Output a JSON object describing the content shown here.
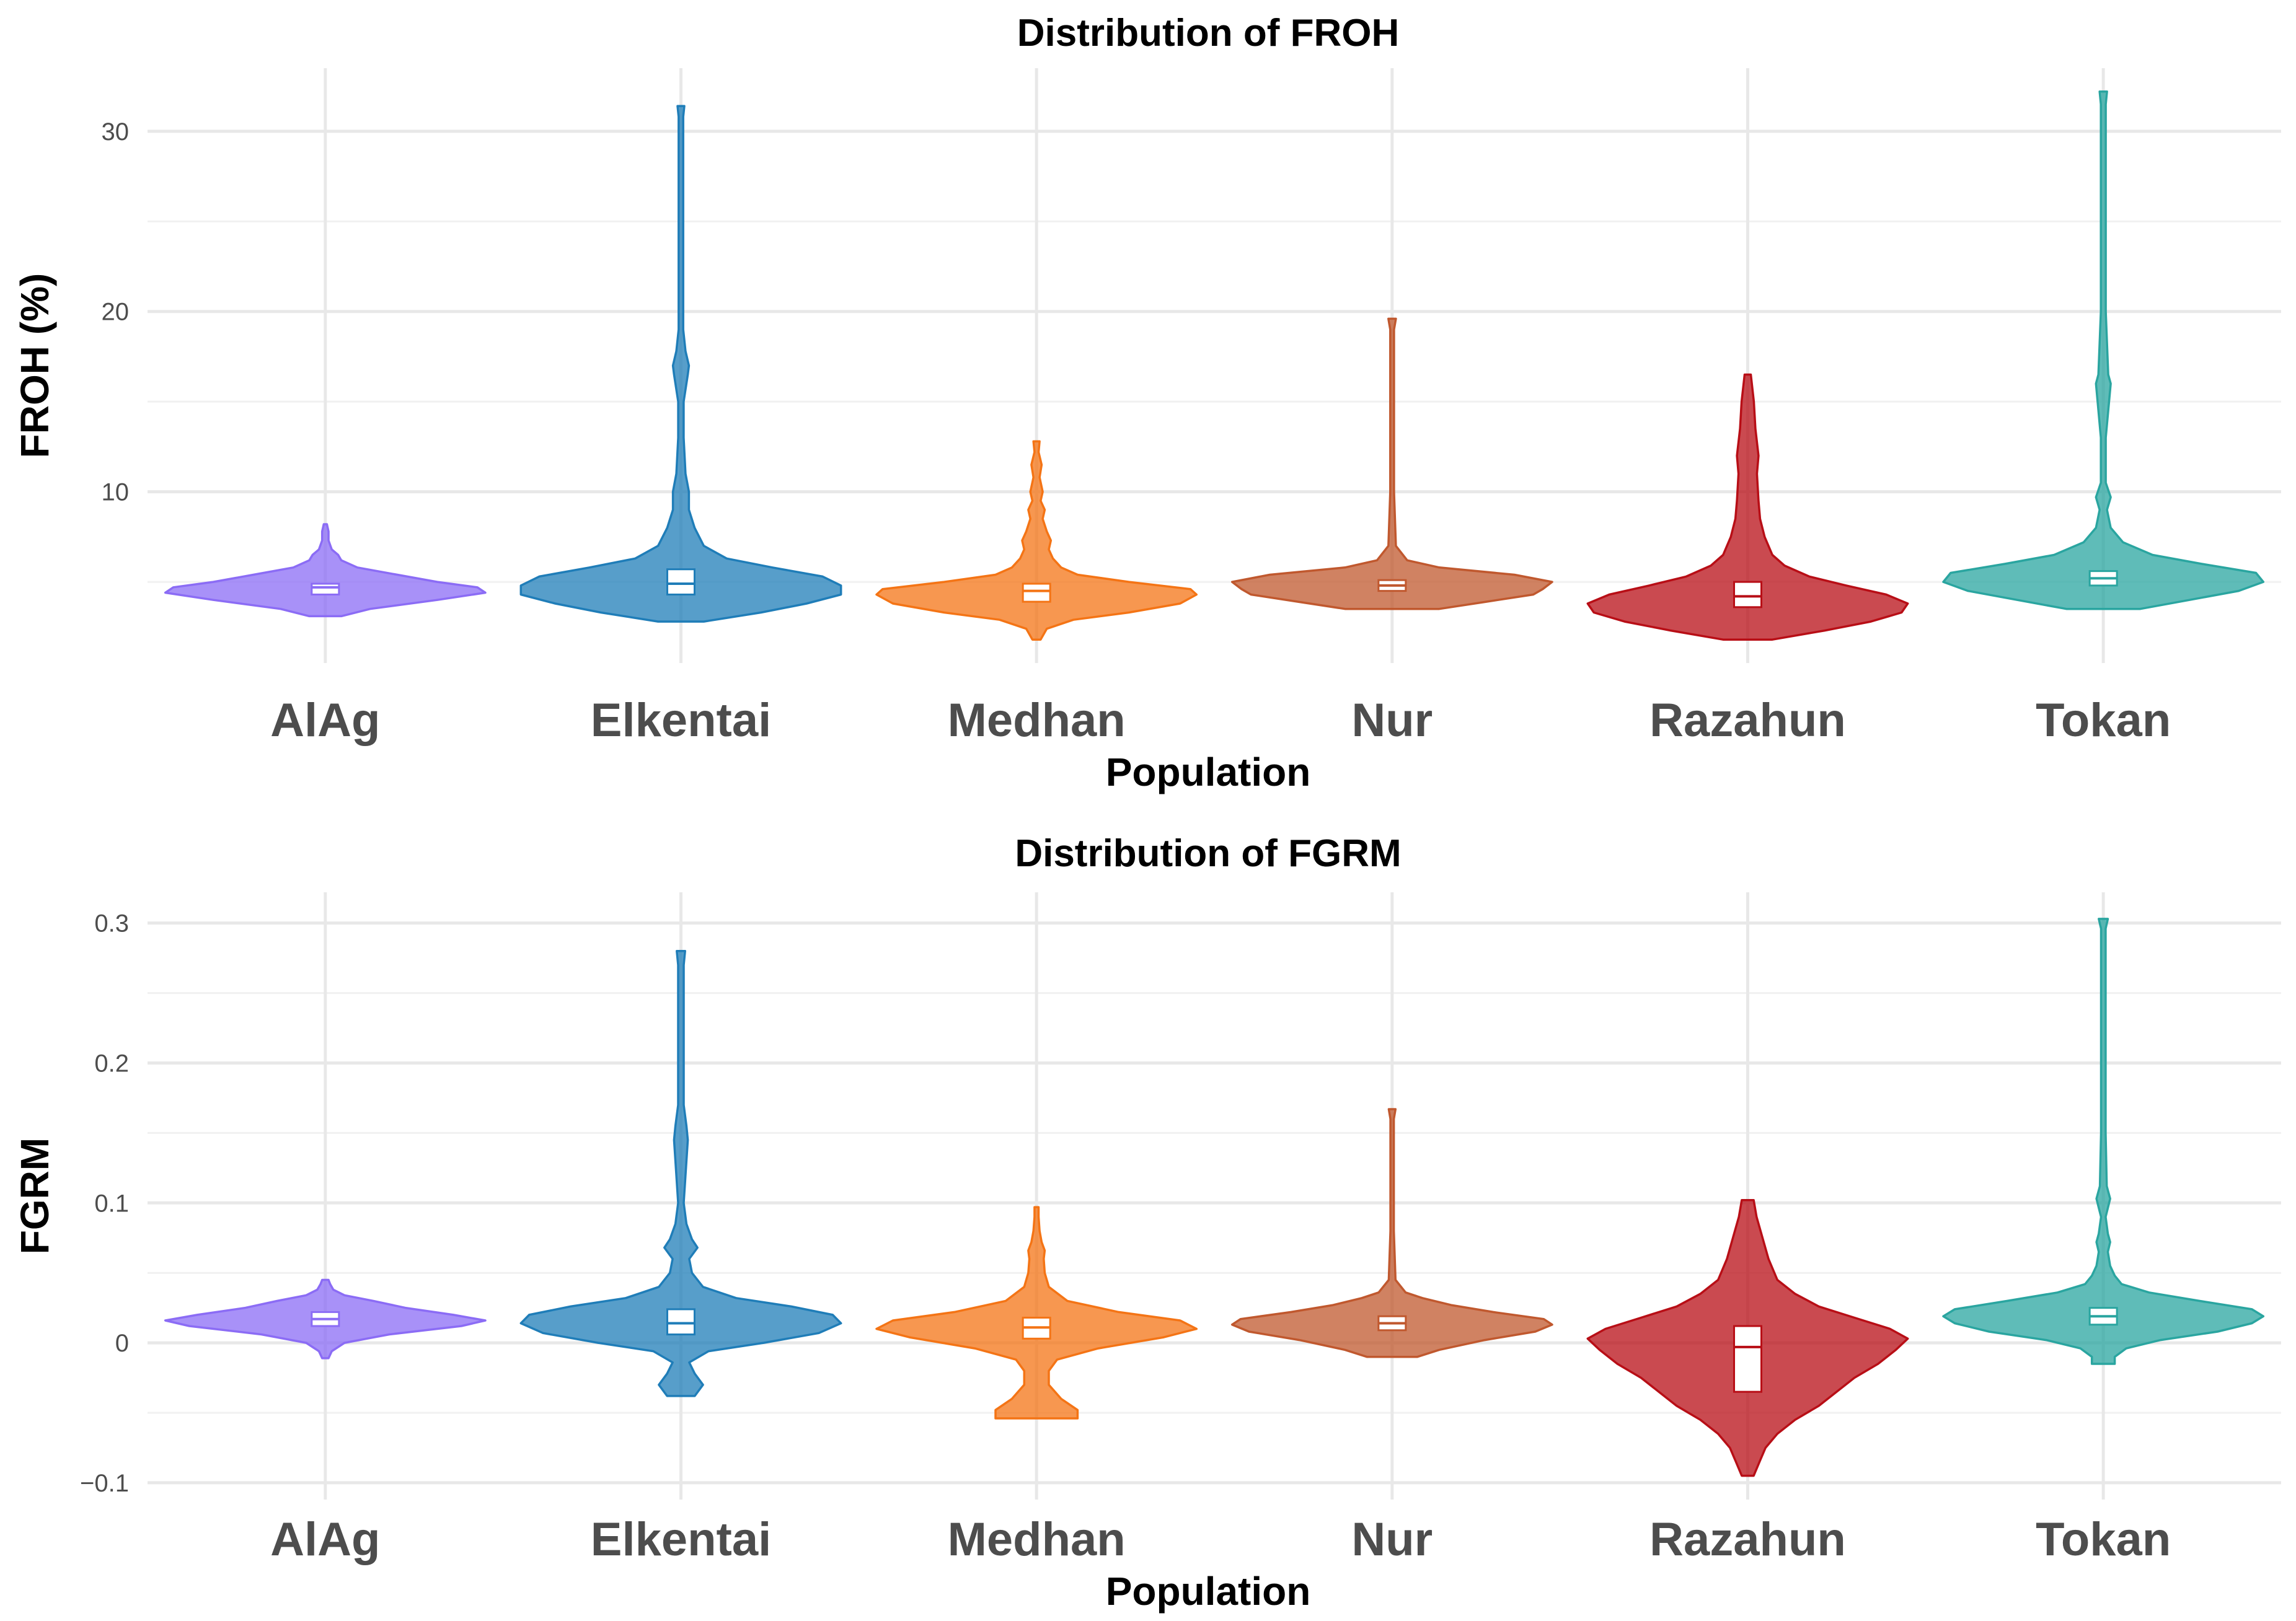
{
  "chart_data": [
    {
      "type": "violin",
      "title": "Distribution of FROH",
      "xlabel": "Population",
      "ylabel": "FROH (%)",
      "categories": [
        "AlAg",
        "Elkentai",
        "Medhan",
        "Nur",
        "Razahun",
        "Tokan"
      ],
      "yticks": [
        10,
        20,
        30
      ],
      "ytick_labels": [
        "10",
        "20",
        "30"
      ],
      "ylim": [
        0.5,
        33.5
      ],
      "series": [
        {
          "name": "AlAg",
          "color": "#8B6CF5",
          "min": 3.1,
          "max": 8.2,
          "q1": 4.3,
          "median": 4.7,
          "q3": 4.9,
          "density": [
            [
              3.1,
              0.1
            ],
            [
              3.5,
              0.28
            ],
            [
              4.0,
              0.7
            ],
            [
              4.4,
              1.0
            ],
            [
              4.7,
              0.95
            ],
            [
              5.0,
              0.7
            ],
            [
              5.4,
              0.45
            ],
            [
              5.8,
              0.2
            ],
            [
              6.2,
              0.1
            ],
            [
              6.5,
              0.08
            ],
            [
              6.8,
              0.04
            ],
            [
              7.3,
              0.02
            ],
            [
              7.8,
              0.02
            ],
            [
              8.2,
              0.01
            ]
          ]
        },
        {
          "name": "Elkentai",
          "color": "#1F7DB8",
          "min": 2.8,
          "max": 31.4,
          "q1": 4.3,
          "median": 4.9,
          "q3": 5.7,
          "density": [
            [
              2.8,
              0.1
            ],
            [
              3.3,
              0.35
            ],
            [
              3.8,
              0.55
            ],
            [
              4.3,
              0.7
            ],
            [
              4.8,
              0.7
            ],
            [
              5.3,
              0.62
            ],
            [
              5.8,
              0.4
            ],
            [
              6.3,
              0.2
            ],
            [
              7.0,
              0.1
            ],
            [
              8.0,
              0.06
            ],
            [
              9.0,
              0.035
            ],
            [
              10.0,
              0.035
            ],
            [
              11.0,
              0.02
            ],
            [
              13.0,
              0.012
            ],
            [
              15.0,
              0.012
            ],
            [
              16.5,
              0.03
            ],
            [
              17.0,
              0.035
            ],
            [
              17.8,
              0.02
            ],
            [
              19.0,
              0.01
            ],
            [
              25.0,
              0.01
            ],
            [
              30.8,
              0.01
            ],
            [
              31.4,
              0.015
            ]
          ]
        },
        {
          "name": "Medhan",
          "color": "#F47415",
          "min": 1.8,
          "max": 12.8,
          "q1": 3.9,
          "median": 4.5,
          "q3": 4.9,
          "density": [
            [
              1.8,
              0.02
            ],
            [
              2.4,
              0.05
            ],
            [
              2.9,
              0.18
            ],
            [
              3.3,
              0.45
            ],
            [
              3.8,
              0.7
            ],
            [
              4.3,
              0.78
            ],
            [
              4.6,
              0.75
            ],
            [
              5.0,
              0.45
            ],
            [
              5.4,
              0.2
            ],
            [
              5.8,
              0.12
            ],
            [
              6.3,
              0.08
            ],
            [
              6.8,
              0.06
            ],
            [
              7.3,
              0.07
            ],
            [
              7.8,
              0.05
            ],
            [
              8.5,
              0.03
            ],
            [
              9.0,
              0.04
            ],
            [
              9.5,
              0.02
            ],
            [
              10.0,
              0.03
            ],
            [
              10.8,
              0.015
            ],
            [
              11.5,
              0.025
            ],
            [
              12.2,
              0.01
            ],
            [
              12.8,
              0.015
            ]
          ]
        },
        {
          "name": "Nur",
          "color": "#C0582E",
          "min": 3.5,
          "max": 19.6,
          "q1": 4.5,
          "median": 4.8,
          "q3": 5.1,
          "density": [
            [
              3.5,
              0.25
            ],
            [
              3.9,
              0.5
            ],
            [
              4.3,
              0.75
            ],
            [
              4.6,
              0.8
            ],
            [
              5.0,
              0.85
            ],
            [
              5.4,
              0.65
            ],
            [
              5.8,
              0.25
            ],
            [
              6.2,
              0.08
            ],
            [
              7.0,
              0.02
            ],
            [
              10.0,
              0.01
            ],
            [
              15.0,
              0.01
            ],
            [
              19.0,
              0.01
            ],
            [
              19.6,
              0.02
            ]
          ]
        },
        {
          "name": "Razahun",
          "color": "#B80E16",
          "min": 1.8,
          "max": 16.5,
          "q1": 3.6,
          "median": 4.2,
          "q3": 5.0,
          "density": [
            [
              1.8,
              0.08
            ],
            [
              2.3,
              0.25
            ],
            [
              2.8,
              0.4
            ],
            [
              3.3,
              0.5
            ],
            [
              3.8,
              0.52
            ],
            [
              4.3,
              0.45
            ],
            [
              4.8,
              0.32
            ],
            [
              5.3,
              0.2
            ],
            [
              5.9,
              0.12
            ],
            [
              6.5,
              0.08
            ],
            [
              7.5,
              0.055
            ],
            [
              8.5,
              0.04
            ],
            [
              9.5,
              0.035
            ],
            [
              11.0,
              0.03
            ],
            [
              12.0,
              0.035
            ],
            [
              13.5,
              0.025
            ],
            [
              15.0,
              0.02
            ],
            [
              16.5,
              0.01
            ]
          ]
        },
        {
          "name": "Tokan",
          "color": "#2AA5A0",
          "min": 3.5,
          "max": 32.2,
          "q1": 4.8,
          "median": 5.2,
          "q3": 5.6,
          "density": [
            [
              3.5,
              0.15
            ],
            [
              4.0,
              0.35
            ],
            [
              4.5,
              0.55
            ],
            [
              5.0,
              0.65
            ],
            [
              5.5,
              0.62
            ],
            [
              6.0,
              0.4
            ],
            [
              6.5,
              0.2
            ],
            [
              7.2,
              0.08
            ],
            [
              8.0,
              0.03
            ],
            [
              9.0,
              0.015
            ],
            [
              9.7,
              0.03
            ],
            [
              10.5,
              0.01
            ],
            [
              13.0,
              0.01
            ],
            [
              16.0,
              0.03
            ],
            [
              16.5,
              0.02
            ],
            [
              20.0,
              0.01
            ],
            [
              31.5,
              0.01
            ],
            [
              32.2,
              0.015
            ]
          ]
        }
      ]
    },
    {
      "type": "violin",
      "title": "Distribution of FGRM",
      "xlabel": "Population",
      "ylabel": "FGRM",
      "categories": [
        "AlAg",
        "Elkentai",
        "Medhan",
        "Nur",
        "Razahun",
        "Tokan"
      ],
      "yticks": [
        -0.1,
        0,
        0.1,
        0.2,
        0.3
      ],
      "ytick_labels": [
        "−0.1",
        "0",
        "0.1",
        "0.2",
        "0.3"
      ],
      "ylim": [
        -0.112,
        0.322
      ],
      "series": [
        {
          "name": "AlAg",
          "color": "#8B6CF5",
          "min": -0.011,
          "max": 0.045,
          "q1": 0.012,
          "median": 0.017,
          "q3": 0.022,
          "density": [
            [
              -0.011,
              0.02
            ],
            [
              -0.006,
              0.04
            ],
            [
              0.0,
              0.12
            ],
            [
              0.006,
              0.4
            ],
            [
              0.012,
              0.85
            ],
            [
              0.016,
              1.0
            ],
            [
              0.02,
              0.8
            ],
            [
              0.025,
              0.5
            ],
            [
              0.03,
              0.3
            ],
            [
              0.034,
              0.12
            ],
            [
              0.038,
              0.05
            ],
            [
              0.042,
              0.03
            ],
            [
              0.045,
              0.02
            ]
          ]
        },
        {
          "name": "Elkentai",
          "color": "#1F7DB8",
          "min": -0.038,
          "max": 0.28,
          "q1": 0.006,
          "median": 0.014,
          "q3": 0.024,
          "density": [
            [
              -0.038,
              0.05
            ],
            [
              -0.03,
              0.08
            ],
            [
              -0.022,
              0.05
            ],
            [
              -0.014,
              0.03
            ],
            [
              -0.006,
              0.1
            ],
            [
              0.0,
              0.3
            ],
            [
              0.007,
              0.5
            ],
            [
              0.014,
              0.58
            ],
            [
              0.02,
              0.55
            ],
            [
              0.026,
              0.4
            ],
            [
              0.032,
              0.2
            ],
            [
              0.04,
              0.08
            ],
            [
              0.05,
              0.04
            ],
            [
              0.06,
              0.03
            ],
            [
              0.068,
              0.06
            ],
            [
              0.074,
              0.04
            ],
            [
              0.085,
              0.02
            ],
            [
              0.1,
              0.01
            ],
            [
              0.13,
              0.02
            ],
            [
              0.145,
              0.025
            ],
            [
              0.155,
              0.02
            ],
            [
              0.17,
              0.01
            ],
            [
              0.22,
              0.01
            ],
            [
              0.27,
              0.01
            ],
            [
              0.28,
              0.015
            ]
          ]
        },
        {
          "name": "Medhan",
          "color": "#F47415",
          "min": -0.054,
          "max": 0.097,
          "q1": 0.003,
          "median": 0.011,
          "q3": 0.018,
          "density": [
            [
              -0.054,
              0.2
            ],
            [
              -0.048,
              0.2
            ],
            [
              -0.04,
              0.12
            ],
            [
              -0.03,
              0.06
            ],
            [
              -0.02,
              0.06
            ],
            [
              -0.012,
              0.1
            ],
            [
              -0.004,
              0.3
            ],
            [
              0.004,
              0.62
            ],
            [
              0.01,
              0.78
            ],
            [
              0.016,
              0.7
            ],
            [
              0.022,
              0.4
            ],
            [
              0.03,
              0.15
            ],
            [
              0.04,
              0.06
            ],
            [
              0.05,
              0.04
            ],
            [
              0.06,
              0.035
            ],
            [
              0.066,
              0.04
            ],
            [
              0.072,
              0.025
            ],
            [
              0.08,
              0.015
            ],
            [
              0.09,
              0.01
            ],
            [
              0.097,
              0.01
            ]
          ]
        },
        {
          "name": "Nur",
          "color": "#C0582E",
          "min": -0.01,
          "max": 0.167,
          "q1": 0.009,
          "median": 0.014,
          "q3": 0.019,
          "density": [
            [
              -0.01,
              0.15
            ],
            [
              -0.005,
              0.28
            ],
            [
              0.002,
              0.55
            ],
            [
              0.008,
              0.85
            ],
            [
              0.013,
              0.95
            ],
            [
              0.017,
              0.9
            ],
            [
              0.022,
              0.6
            ],
            [
              0.027,
              0.35
            ],
            [
              0.032,
              0.18
            ],
            [
              0.036,
              0.08
            ],
            [
              0.045,
              0.02
            ],
            [
              0.08,
              0.01
            ],
            [
              0.12,
              0.01
            ],
            [
              0.16,
              0.01
            ],
            [
              0.167,
              0.02
            ]
          ]
        },
        {
          "name": "Razahun",
          "color": "#B80E16",
          "min": -0.095,
          "max": 0.102,
          "q1": -0.035,
          "median": -0.003,
          "q3": 0.012,
          "density": [
            [
              -0.095,
              0.01
            ],
            [
              -0.085,
              0.02
            ],
            [
              -0.075,
              0.03
            ],
            [
              -0.065,
              0.05
            ],
            [
              -0.055,
              0.08
            ],
            [
              -0.045,
              0.12
            ],
            [
              -0.035,
              0.15
            ],
            [
              -0.025,
              0.18
            ],
            [
              -0.015,
              0.22
            ],
            [
              -0.005,
              0.25
            ],
            [
              0.003,
              0.27
            ],
            [
              0.01,
              0.24
            ],
            [
              0.018,
              0.18
            ],
            [
              0.026,
              0.12
            ],
            [
              0.035,
              0.08
            ],
            [
              0.045,
              0.05
            ],
            [
              0.06,
              0.035
            ],
            [
              0.075,
              0.025
            ],
            [
              0.09,
              0.015
            ],
            [
              0.102,
              0.01
            ]
          ]
        },
        {
          "name": "Tokan",
          "color": "#2AA5A0",
          "min": -0.015,
          "max": 0.303,
          "q1": 0.013,
          "median": 0.019,
          "q3": 0.025,
          "density": [
            [
              -0.015,
              0.05
            ],
            [
              -0.01,
              0.05
            ],
            [
              -0.004,
              0.1
            ],
            [
              0.002,
              0.25
            ],
            [
              0.008,
              0.5
            ],
            [
              0.014,
              0.65
            ],
            [
              0.019,
              0.7
            ],
            [
              0.024,
              0.65
            ],
            [
              0.03,
              0.42
            ],
            [
              0.036,
              0.2
            ],
            [
              0.042,
              0.08
            ],
            [
              0.048,
              0.05
            ],
            [
              0.055,
              0.03
            ],
            [
              0.065,
              0.02
            ],
            [
              0.072,
              0.03
            ],
            [
              0.078,
              0.02
            ],
            [
              0.09,
              0.01
            ],
            [
              0.103,
              0.03
            ],
            [
              0.112,
              0.015
            ],
            [
              0.15,
              0.01
            ],
            [
              0.25,
              0.01
            ],
            [
              0.296,
              0.01
            ],
            [
              0.303,
              0.02
            ]
          ]
        }
      ]
    }
  ]
}
